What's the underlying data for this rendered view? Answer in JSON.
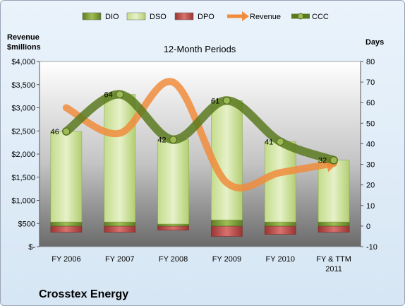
{
  "chart_data": {
    "type": "bar",
    "title": "12-Month Periods",
    "company": "Crosstex Energy",
    "left_axis_label_line1": "Revenue",
    "left_axis_label_line2": "$millions",
    "right_axis_label": "Days",
    "left_ylim": [
      0,
      4000
    ],
    "right_ylim": [
      -10,
      80
    ],
    "left_ticks": [
      "$-",
      "$500",
      "$1,000",
      "$1,500",
      "$2,000",
      "$2,500",
      "$3,000",
      "$3,500",
      "$4,000"
    ],
    "right_ticks": [
      "-10",
      "0",
      "10",
      "20",
      "30",
      "40",
      "50",
      "60",
      "70",
      "80"
    ],
    "categories": [
      [
        "FY 2006"
      ],
      [
        "FY 2007"
      ],
      [
        "FY 2008"
      ],
      [
        "FY 2009"
      ],
      [
        "FY 2010"
      ],
      [
        "FY & TTM",
        "2011"
      ]
    ],
    "legend_position": "top",
    "series": [
      {
        "name": "DIO",
        "kind": "bar",
        "axis": "days",
        "values": [
          2,
          2,
          1,
          3,
          2,
          2
        ],
        "color": "#6f8f2e"
      },
      {
        "name": "DSO",
        "kind": "bar",
        "axis": "days",
        "values": [
          44,
          62,
          41,
          58,
          39,
          30
        ],
        "color": "#d4e6a6"
      },
      {
        "name": "DPO",
        "kind": "bar",
        "axis": "days",
        "values": [
          -3,
          -3,
          -2,
          -5,
          -4,
          -3
        ],
        "color": "#c0504d"
      },
      {
        "name": "Revenue",
        "kind": "line",
        "axis": "revenue",
        "values": [
          3000,
          2450,
          3550,
          1380,
          1600,
          1800
        ],
        "color": "#f08c3c"
      },
      {
        "name": "CCC",
        "kind": "line",
        "axis": "days",
        "values": [
          46,
          64,
          42,
          61,
          41,
          32
        ],
        "color": "#5a7a1f"
      }
    ],
    "ccc_labels": [
      "46",
      "64",
      "42",
      "61",
      "41",
      "32"
    ],
    "grid": false
  }
}
